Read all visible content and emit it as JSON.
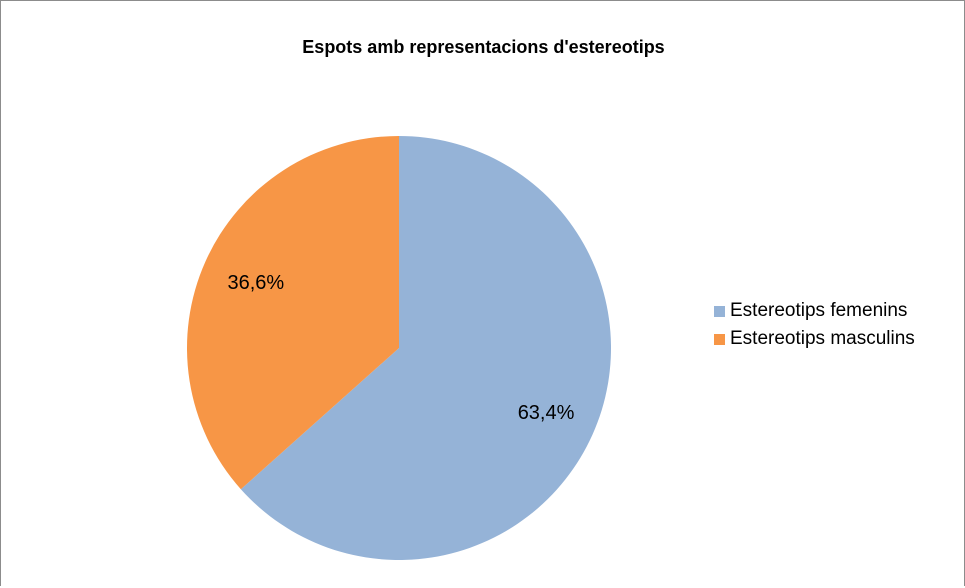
{
  "chart_data": {
    "type": "pie",
    "title": "Espots amb representacions d'estereotips",
    "slices": [
      {
        "label": "Estereotips femenins",
        "value": 63.4,
        "value_label": "63,4%",
        "color": "#95b3d7"
      },
      {
        "label": "Estereotips masculins",
        "value": 36.6,
        "value_label": "36,6%",
        "color": "#f79646"
      }
    ],
    "start_angle_deg": 0,
    "direction": "clockwise",
    "legend_position": "right"
  }
}
